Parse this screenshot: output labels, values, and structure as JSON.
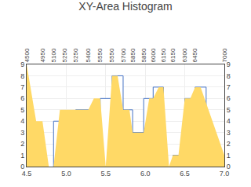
{
  "chart_data": {
    "type": "area_histogram",
    "title": "XY-Area Histogram",
    "xlim": [
      4.5,
      7.0
    ],
    "xticks": [
      4.5,
      {
        "value": 5.0,
        "label": "5.0"
      },
      5.5,
      {
        "value": 6.0,
        "label": "6.0"
      },
      6.5,
      {
        "value": 7.0,
        "label": "7.0"
      }
    ],
    "x2ticks": [
      {
        "value": 4.5,
        "label": "4500"
      },
      {
        "value": 4.7,
        "label": "4950"
      },
      {
        "value": 4.84,
        "label": "5100"
      },
      {
        "value": 4.98,
        "label": "5250"
      },
      {
        "value": 5.12,
        "label": "5250"
      },
      {
        "value": 5.28,
        "label": "5400"
      },
      {
        "value": 5.43,
        "label": "5550"
      },
      {
        "value": 5.58,
        "label": "5550"
      },
      {
        "value": 5.72,
        "label": "5700"
      },
      {
        "value": 5.84,
        "label": "5850"
      },
      {
        "value": 5.98,
        "label": "5850"
      },
      {
        "value": 6.1,
        "label": "6000"
      },
      {
        "value": 6.23,
        "label": "6150"
      },
      {
        "value": 6.35,
        "label": "6150"
      },
      {
        "value": 6.5,
        "label": "6300"
      },
      {
        "value": 6.63,
        "label": "6450"
      },
      {
        "value": 7.0,
        "label": "7000"
      }
    ],
    "ylim": [
      0,
      9
    ],
    "yticks": [
      0,
      1,
      2,
      3,
      4,
      5,
      6,
      7,
      8,
      9
    ],
    "y2lim": [
      0,
      9
    ],
    "y2ticks": [
      0,
      1,
      2,
      3,
      4,
      5,
      6,
      7,
      8,
      9
    ],
    "grid": true,
    "series": [
      {
        "type": "area",
        "color": "#FFD966",
        "x": [
          4.5,
          4.62,
          4.7,
          4.78,
          4.84,
          4.92,
          5.0,
          5.08,
          5.12,
          5.2,
          5.28,
          5.35,
          5.43,
          5.5,
          5.58,
          5.65,
          5.72,
          5.8,
          5.84,
          5.9,
          5.98,
          6.05,
          6.1,
          6.17,
          6.23,
          6.3,
          6.35,
          6.42,
          6.5,
          6.57,
          6.63,
          6.7,
          7.0
        ],
        "values": [
          9,
          4,
          4,
          0,
          0,
          5,
          5,
          5,
          5,
          5,
          5,
          6,
          6,
          0,
          8,
          8,
          5,
          5,
          3,
          3,
          3,
          6,
          6,
          7,
          7,
          0,
          1,
          1,
          6,
          6,
          7,
          7,
          1
        ]
      },
      {
        "type": "bar",
        "color": "#4472C4",
        "marker": "outline",
        "x0": [
          4.84,
          4.98,
          5.12,
          5.28,
          5.43,
          5.58,
          5.72,
          5.84,
          5.98,
          6.1,
          6.35,
          6.5,
          6.63
        ],
        "x1": [
          4.98,
          5.12,
          5.28,
          5.43,
          5.58,
          5.72,
          5.84,
          5.98,
          6.1,
          6.23,
          6.5,
          6.63,
          6.77
        ],
        "values": [
          4,
          4,
          5,
          5,
          6,
          8,
          5,
          3,
          6,
          7,
          1,
          6,
          7
        ]
      }
    ]
  }
}
